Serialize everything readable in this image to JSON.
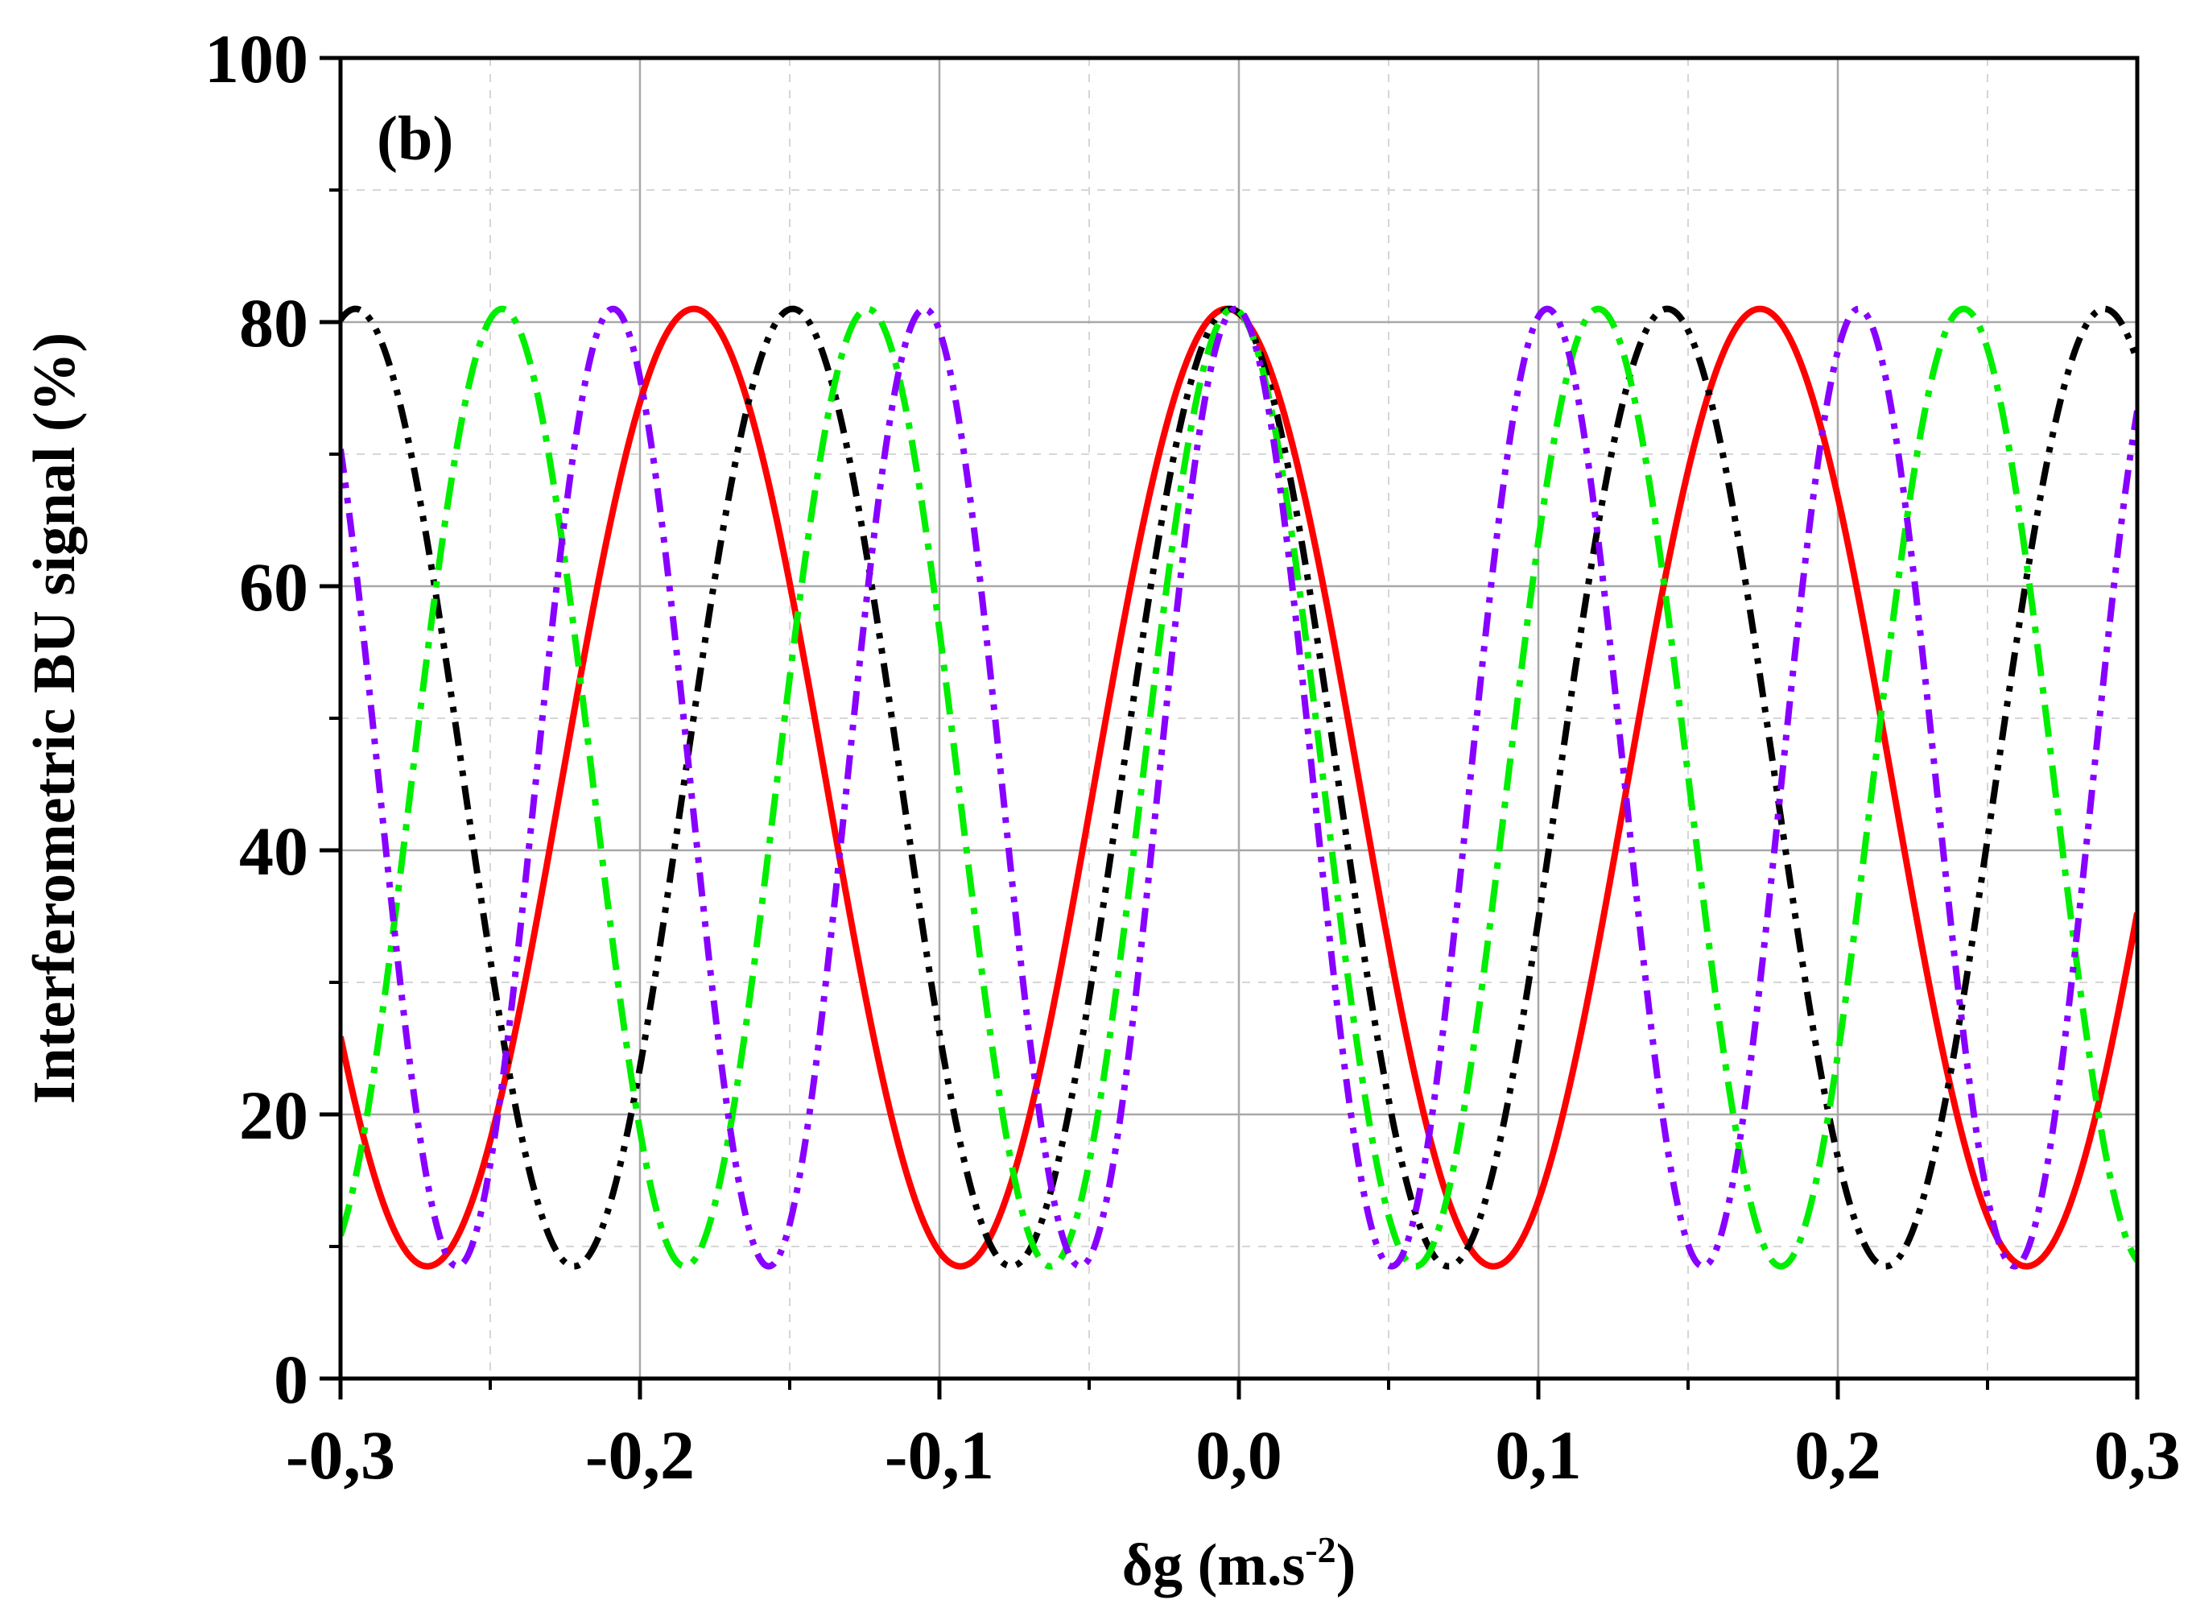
{
  "chart_data": {
    "type": "line",
    "panel_label": "(b)",
    "title": "",
    "xlabel": "δg (m.s",
    "xlabel_superscript": "-2",
    "xlabel_suffix": ")",
    "ylabel": "Interferometric BU signal (%)",
    "xlim": [
      -0.3,
      0.3
    ],
    "ylim": [
      0,
      100
    ],
    "x_ticks": [
      -0.3,
      -0.2,
      -0.1,
      0.0,
      0.1,
      0.2,
      0.3
    ],
    "x_tick_labels": [
      "-0,3",
      "-0,2",
      "-0,1",
      "0,0",
      "0,1",
      "0,2",
      "0,3"
    ],
    "y_ticks": [
      0,
      20,
      40,
      60,
      80,
      100
    ],
    "y_tick_labels": [
      "0",
      "20",
      "40",
      "60",
      "80",
      "100"
    ],
    "grid": true,
    "series": [
      {
        "name": "red-solid",
        "color": "#ff0000",
        "dash": "solid",
        "center": -0.004,
        "period": 0.178,
        "min": 8.5,
        "max": 81
      },
      {
        "name": "black-dash-dot-dot",
        "color": "#000000",
        "dash": "dash-dot-dot",
        "center": -0.003,
        "period": 0.146,
        "min": 8.5,
        "max": 81
      },
      {
        "name": "green-dash-dot",
        "color": "#00ee00",
        "dash": "dash-dot",
        "center": -0.002,
        "period": 0.122,
        "min": 8.5,
        "max": 81
      },
      {
        "name": "violet-dash-dot-dot",
        "color": "#8800ff",
        "dash": "dash-dot-dot",
        "center": -0.001,
        "period": 0.104,
        "min": 8.5,
        "max": 81
      }
    ]
  }
}
